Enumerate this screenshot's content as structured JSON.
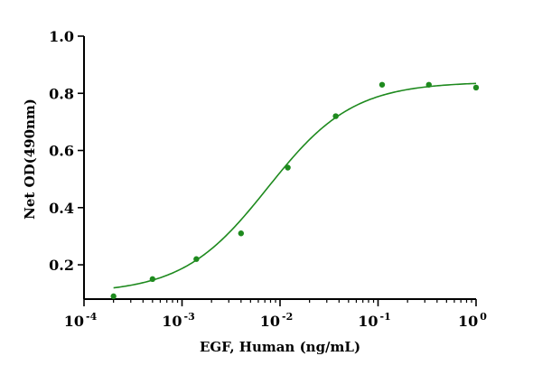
{
  "chart_data": {
    "type": "scatter",
    "x_scale": "log",
    "xlabel": "EGF, Human (ng/mL)",
    "ylabel": "Net OD(490nm)",
    "xlim": [
      0.0001,
      1
    ],
    "ylim": [
      0.08,
      1.0
    ],
    "y_ticks": [
      "0.2",
      "0.4",
      "0.6",
      "0.8",
      "1.0"
    ],
    "x_ticks": [
      {
        "base": "10",
        "exp": "-4"
      },
      {
        "base": "10",
        "exp": "-3"
      },
      {
        "base": "10",
        "exp": "-2"
      },
      {
        "base": "10",
        "exp": "-1"
      },
      {
        "base": "10",
        "exp": "0"
      }
    ],
    "points": [
      {
        "x": 0.0002,
        "y": 0.09
      },
      {
        "x": 0.0005,
        "y": 0.15
      },
      {
        "x": 0.0014,
        "y": 0.22
      },
      {
        "x": 0.004,
        "y": 0.31
      },
      {
        "x": 0.012,
        "y": 0.54
      },
      {
        "x": 0.037,
        "y": 0.72
      },
      {
        "x": 0.11,
        "y": 0.83
      },
      {
        "x": 0.33,
        "y": 0.83
      },
      {
        "x": 1.0,
        "y": 0.82
      }
    ],
    "fit": {
      "model": "4PL",
      "bottom": 0.1,
      "top": 0.84,
      "ec50": 0.0075,
      "hill": 1.0,
      "x_range": [
        0.0002,
        1.0
      ]
    },
    "colors": {
      "series": "#1e8a1e",
      "axes": "#000000"
    },
    "grid": false,
    "legend": "none"
  }
}
